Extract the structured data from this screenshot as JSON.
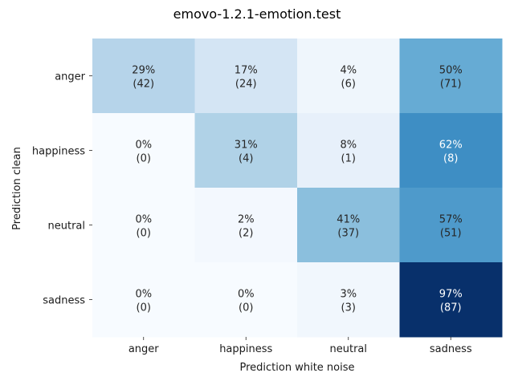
{
  "chart_data": {
    "type": "heatmap",
    "title": "emovo-1.2.1-emotion.test",
    "xlabel": "Prediction white noise",
    "ylabel": "Prediction clean",
    "x_categories": [
      "anger",
      "happiness",
      "neutral",
      "sadness"
    ],
    "y_categories": [
      "anger",
      "happiness",
      "neutral",
      "sadness"
    ],
    "percent_labels": [
      [
        "29%",
        "17%",
        "4%",
        "50%"
      ],
      [
        "0%",
        "31%",
        "8%",
        "62%"
      ],
      [
        "0%",
        "2%",
        "41%",
        "57%"
      ],
      [
        "0%",
        "0%",
        "3%",
        "97%"
      ]
    ],
    "count_labels": [
      [
        "(42)",
        "(24)",
        "(6)",
        "(71)"
      ],
      [
        "(0)",
        "(4)",
        "(1)",
        "(8)"
      ],
      [
        "(0)",
        "(2)",
        "(37)",
        "(51)"
      ],
      [
        "(0)",
        "(0)",
        "(3)",
        "(87)"
      ]
    ],
    "percent_values": [
      [
        29,
        17,
        4,
        50
      ],
      [
        0,
        31,
        8,
        62
      ],
      [
        0,
        2,
        41,
        57
      ],
      [
        0,
        0,
        3,
        97
      ]
    ],
    "colorscale": "Blues",
    "colorbar": false,
    "grid": false
  }
}
